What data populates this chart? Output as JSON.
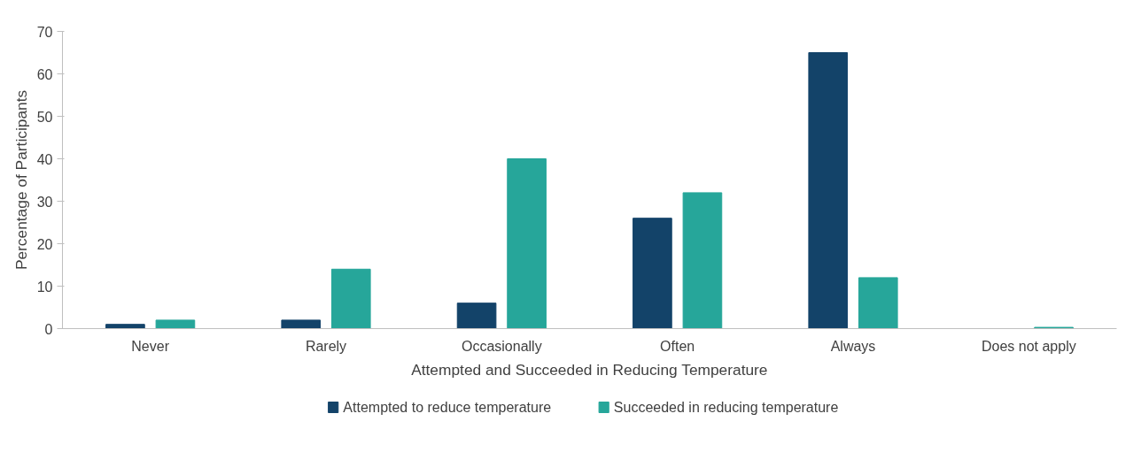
{
  "chart_data": {
    "type": "bar",
    "xlabel": "Attempted and Succeeded in Reducing Temperature",
    "ylabel": "Percentage of Participants",
    "categories": [
      "Never",
      "Rarely",
      "Occasionally",
      "Often",
      "Always",
      "Does not apply"
    ],
    "series": [
      {
        "name": "Attempted to reduce temperature",
        "color": "#134369",
        "values": [
          1,
          2,
          6,
          26,
          65,
          0
        ]
      },
      {
        "name": "Succeeded in reducing temperature",
        "color": "#26a69a",
        "values": [
          2,
          14,
          40,
          32,
          12,
          0.3
        ]
      }
    ],
    "ylim": [
      0,
      70
    ],
    "yticks": [
      0,
      10,
      20,
      30,
      40,
      50,
      60,
      70
    ],
    "grid": false,
    "legend": "bottom"
  }
}
